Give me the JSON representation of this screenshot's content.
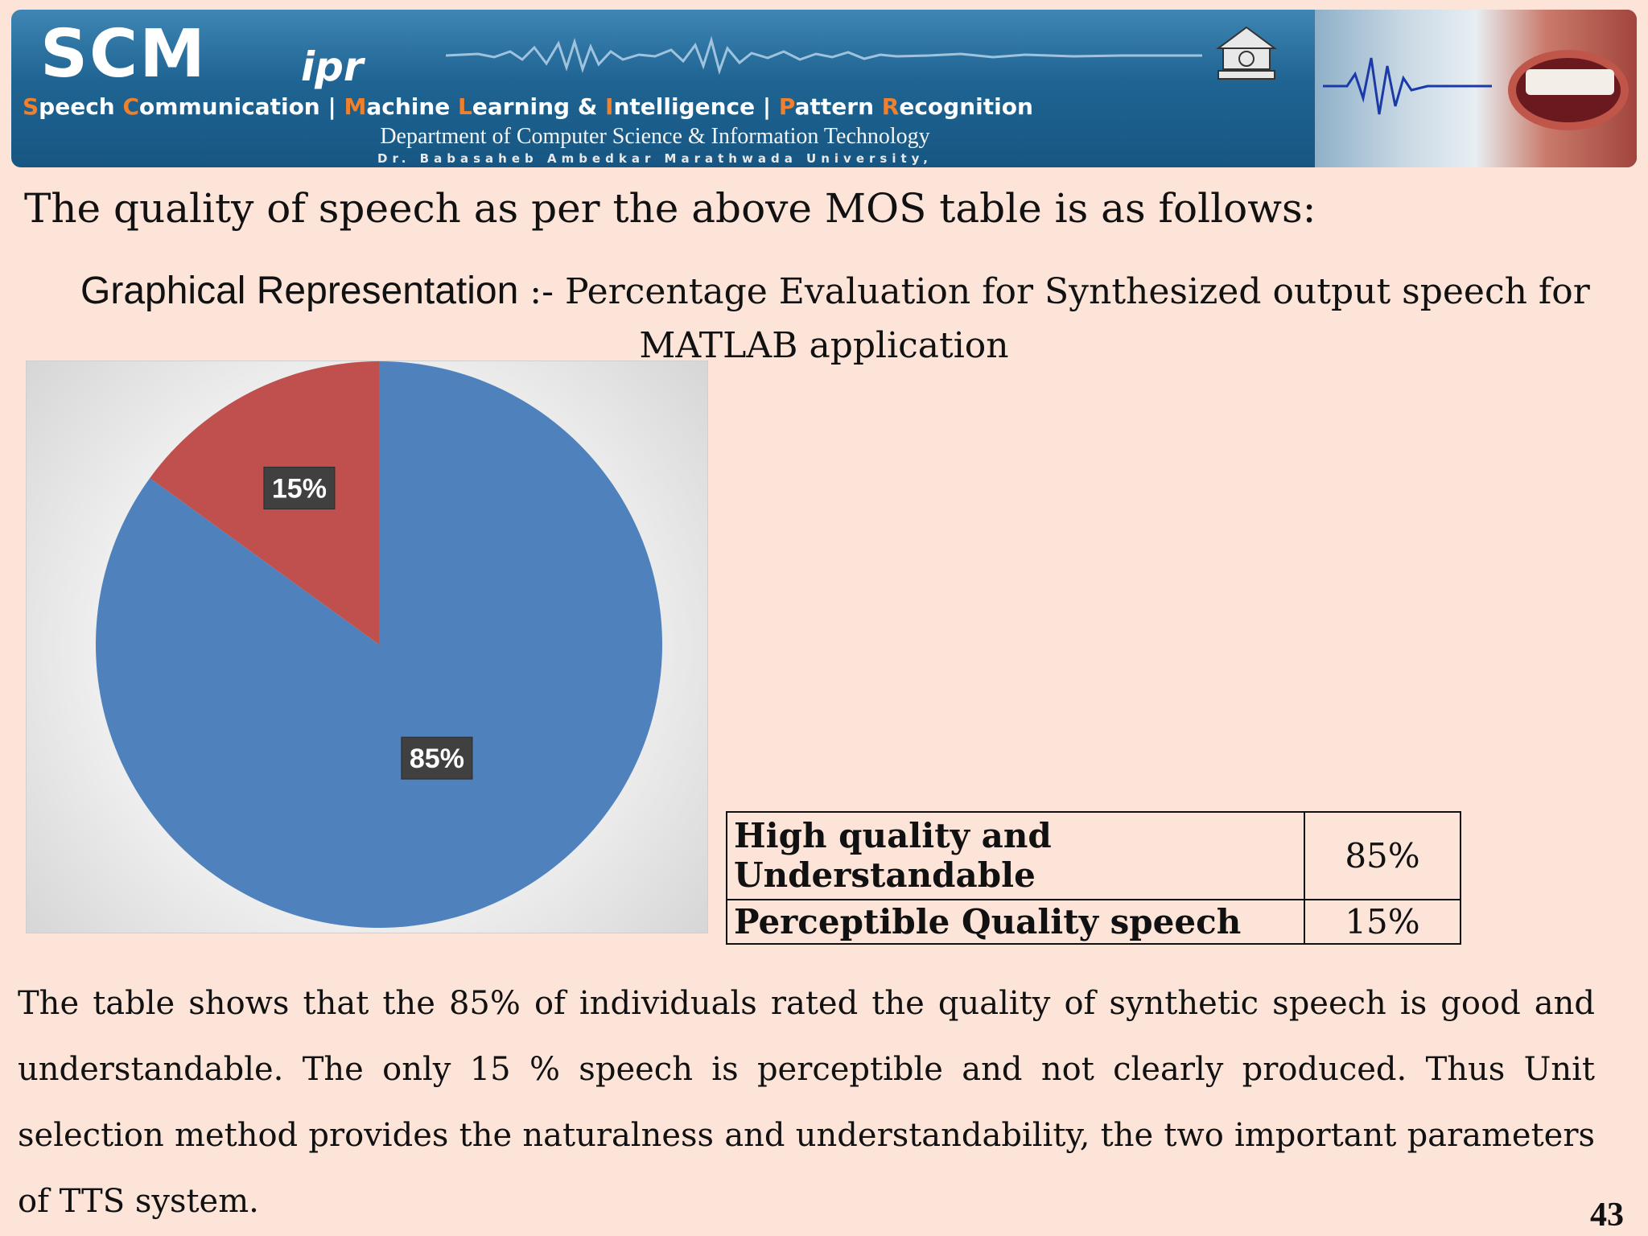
{
  "banner": {
    "logo_main": "SCM",
    "logo_suffix": "ipr",
    "tagline": {
      "s_initial": "S",
      "s_rest": "peech ",
      "c_initial": "C",
      "c_rest": "ommunication  |  ",
      "m_initial": "M",
      "m_rest": "achine ",
      "l_initial": "L",
      "l_rest": "earning & ",
      "i_initial": "I",
      "i_rest": "ntelligence  |  ",
      "p_initial": "P",
      "p_rest": "attern ",
      "r_initial": "R",
      "r_rest": "ecognition"
    },
    "department": "Department of Computer Science & Information Technology",
    "university": "Dr. Babasaheb Ambedkar Marathwada University,"
  },
  "slide": {
    "heading": "The quality of speech as per the above MOS table is as follows:",
    "caption_prefix": "Graphical Representation",
    "caption_rest": " :- Percentage Evaluation for Synthesized output speech for",
    "caption_line2": "MATLAB application",
    "table": [
      {
        "label": "High quality and Understandable",
        "value": "85%"
      },
      {
        "label": "Perceptible Quality speech",
        "value": "15%"
      }
    ],
    "paragraph": "The table shows that the 85% of individuals rated the quality of synthetic speech is good and understandable. The only 15 % speech is perceptible and not clearly produced. Thus Unit selection method provides the naturalness and understandability, the two important parameters of TTS system.",
    "page_number": "43"
  },
  "chart_data": {
    "type": "pie",
    "categories": [
      "High quality and Understandable",
      "Perceptible Quality speech"
    ],
    "values": [
      85,
      15
    ],
    "data_labels": [
      "85%",
      "15%"
    ],
    "colors": [
      "#4f81bd",
      "#c0504d"
    ]
  }
}
